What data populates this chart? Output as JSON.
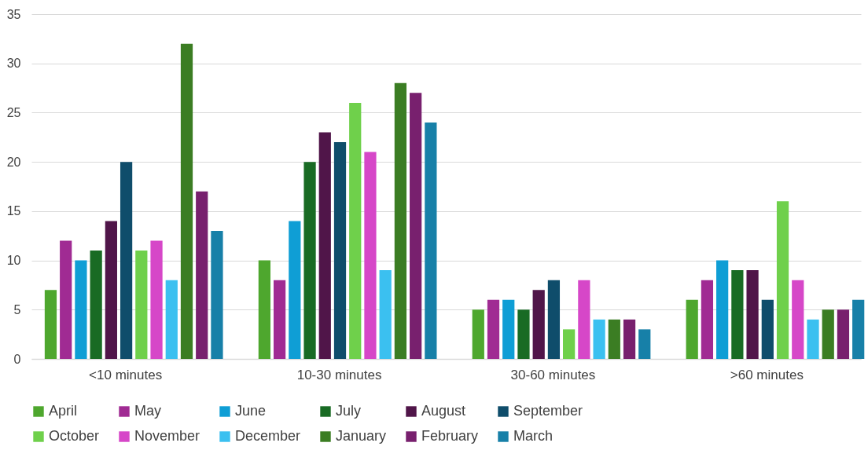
{
  "chart_data": {
    "type": "bar",
    "categories": [
      "<10 minutes",
      "10-30 minutes",
      "30-60 minutes",
      ">60 minutes"
    ],
    "series": [
      {
        "name": "April",
        "color": "#4ea72e",
        "values": [
          7,
          10,
          5,
          6
        ]
      },
      {
        "name": "May",
        "color": "#a02b93",
        "values": [
          12,
          8,
          6,
          8
        ]
      },
      {
        "name": "June",
        "color": "#0f9ed5",
        "values": [
          10,
          14,
          6,
          10
        ]
      },
      {
        "name": "July",
        "color": "#196b24",
        "values": [
          11,
          20,
          5,
          9
        ]
      },
      {
        "name": "August",
        "color": "#501549",
        "values": [
          14,
          23,
          7,
          9
        ]
      },
      {
        "name": "September",
        "color": "#0f4d6b",
        "values": [
          20,
          22,
          8,
          6
        ]
      },
      {
        "name": "October",
        "color": "#6fd04b",
        "values": [
          11,
          26,
          3,
          16
        ]
      },
      {
        "name": "November",
        "color": "#d647c8",
        "values": [
          12,
          21,
          8,
          8
        ]
      },
      {
        "name": "December",
        "color": "#3bc0f0",
        "values": [
          8,
          9,
          4,
          4
        ]
      },
      {
        "name": "January",
        "color": "#3b7d23",
        "values": [
          32,
          28,
          4,
          5
        ]
      },
      {
        "name": "February",
        "color": "#78206e",
        "values": [
          17,
          27,
          4,
          5
        ]
      },
      {
        "name": "March",
        "color": "#1780a8",
        "values": [
          13,
          24,
          3,
          6
        ]
      }
    ],
    "ylim": [
      0,
      35
    ],
    "yticks": [
      0,
      5,
      10,
      15,
      20,
      25,
      30,
      35
    ],
    "grid": "y",
    "legend": "bottom"
  }
}
